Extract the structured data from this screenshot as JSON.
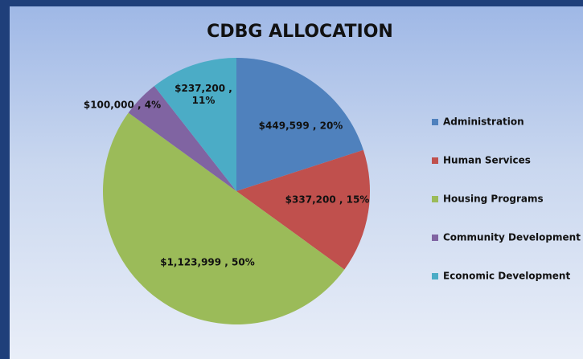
{
  "chart_data": {
    "type": "pie",
    "title": "CDBG ALLOCATION",
    "categories": [
      "Administration",
      "Human Services",
      "Housing Programs",
      "Community Development",
      "Economic Development"
    ],
    "values": [
      449599,
      337200,
      1123999,
      100000,
      237200
    ],
    "value_labels": [
      "$449,599 , 20%",
      "$337,200 , 15%",
      "$1,123,999 , 50%",
      "$100,000 , 4%",
      "$237,200 , 11%"
    ],
    "colors": [
      "#4f81bd",
      "#c0504d",
      "#9bbb59",
      "#8064a2",
      "#4bacc6"
    ],
    "legend": "right"
  }
}
